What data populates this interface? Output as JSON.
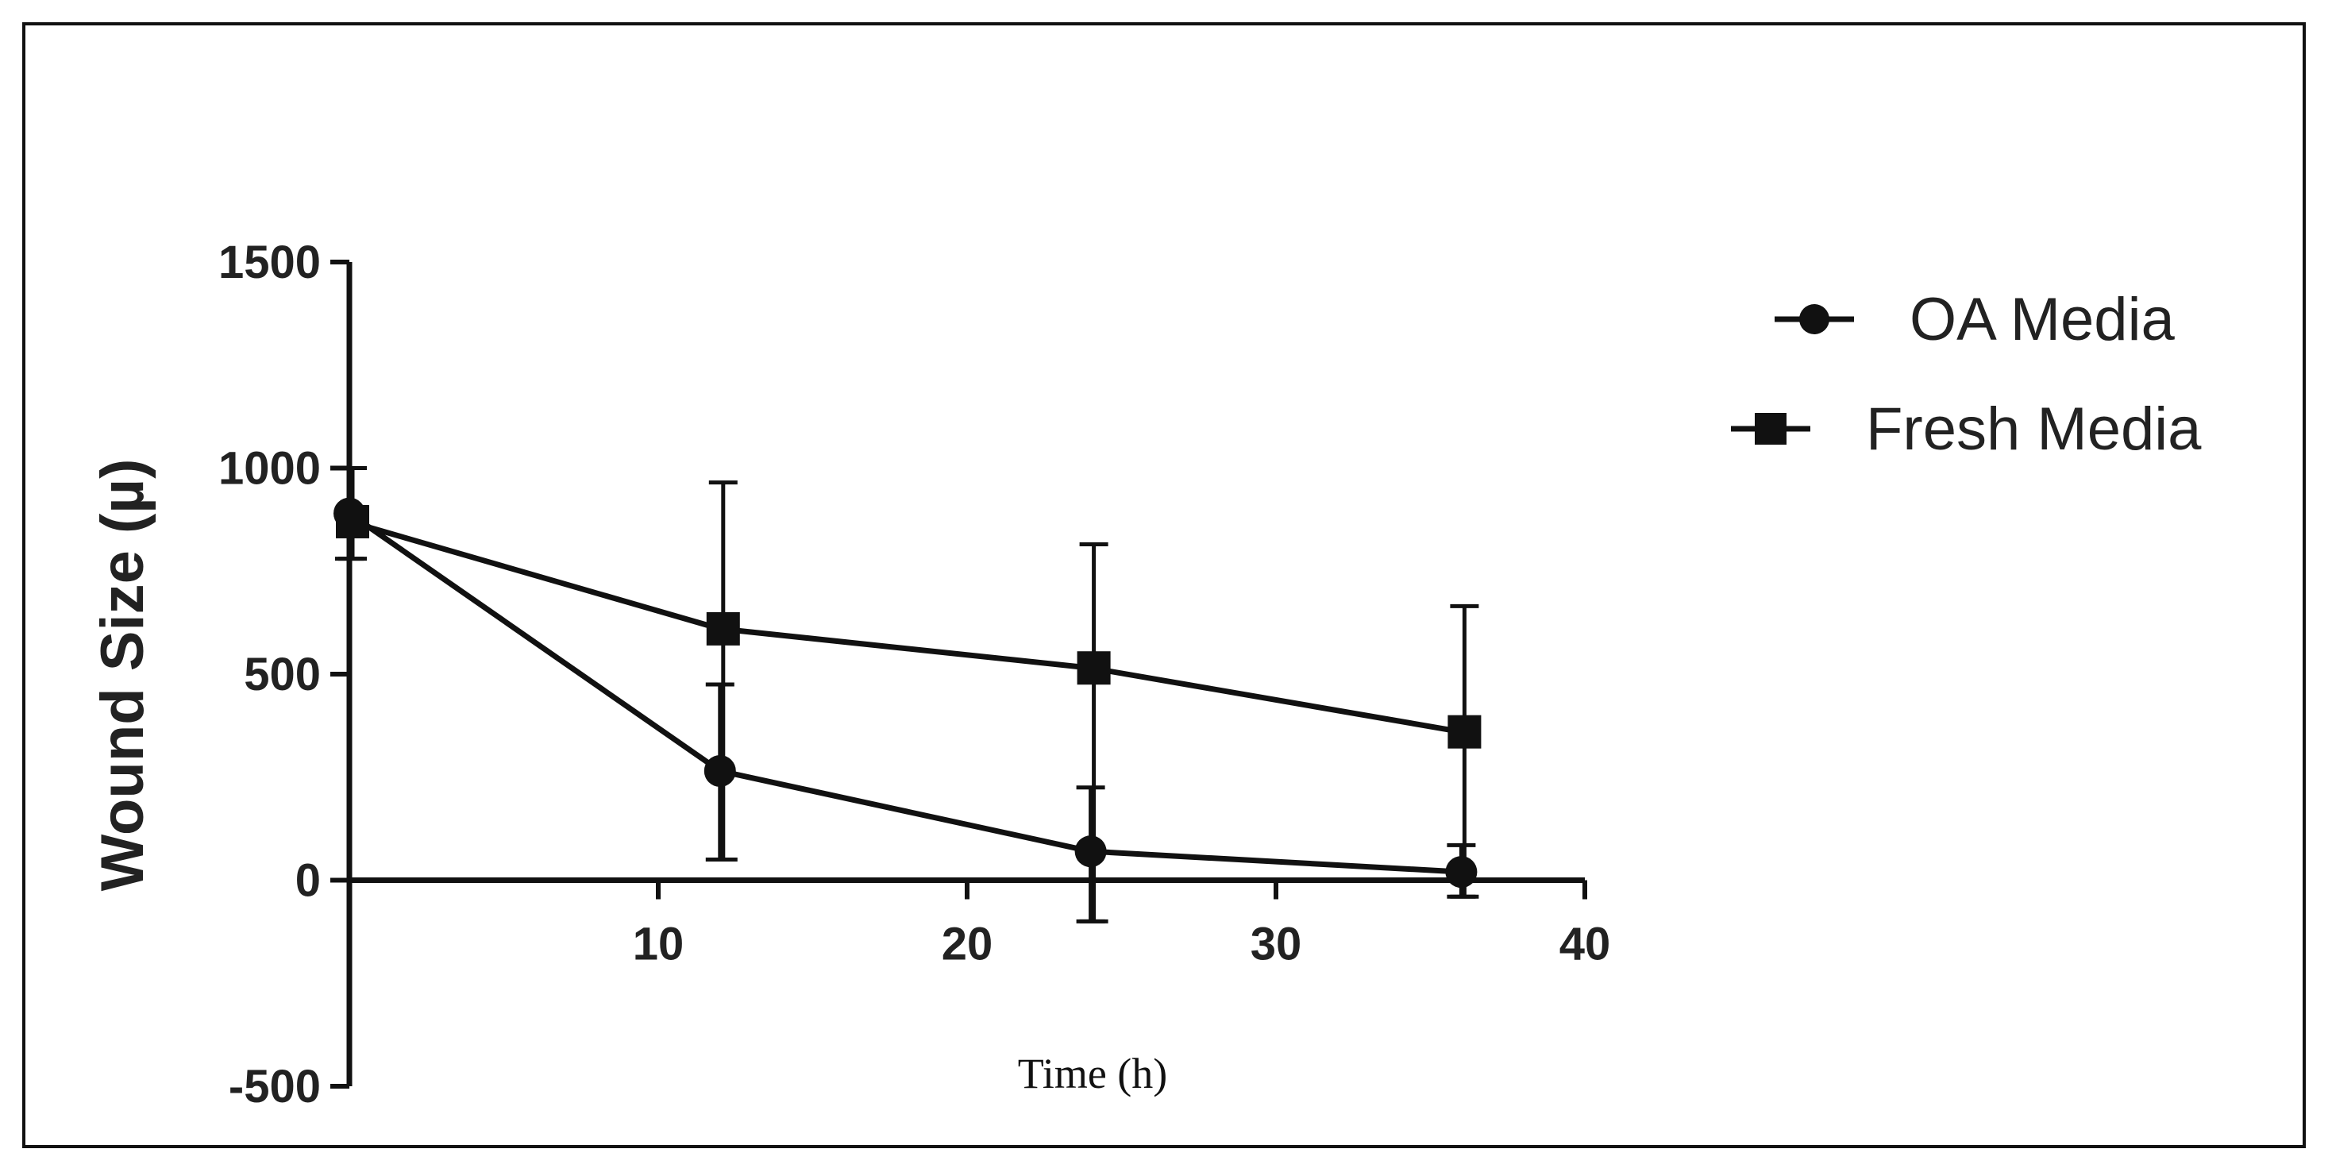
{
  "chart_data": {
    "type": "line",
    "title": "",
    "xlabel": "Time (h)",
    "ylabel": "Wound Size (µ)",
    "xlim": [
      0,
      40
    ],
    "ylim": [
      -500,
      1500
    ],
    "x_ticks": [
      10,
      20,
      30,
      40
    ],
    "x_tick_labels": [
      "10",
      "20",
      "30",
      "40"
    ],
    "y_ticks": [
      -500,
      0,
      500,
      1000,
      1500
    ],
    "y_tick_labels": [
      "-500",
      "0",
      "500",
      "1000",
      "1500"
    ],
    "grid": false,
    "legend_position": "top-right",
    "series": [
      {
        "name": "OA Media",
        "marker": "circle",
        "color": "#111111",
        "x": [
          0,
          12,
          24,
          36
        ],
        "y": [
          890,
          265,
          70,
          20
        ],
        "err_low": [
          780,
          50,
          -100,
          -40
        ],
        "err_high": [
          1000,
          475,
          225,
          85
        ]
      },
      {
        "name": "Fresh Media",
        "marker": "square",
        "color": "#111111",
        "x": [
          0,
          12,
          24,
          36
        ],
        "y": [
          870,
          610,
          515,
          360
        ],
        "err_low": [
          780,
          50,
          -100,
          -40
        ],
        "err_high": [
          1000,
          965,
          815,
          665
        ]
      }
    ]
  }
}
